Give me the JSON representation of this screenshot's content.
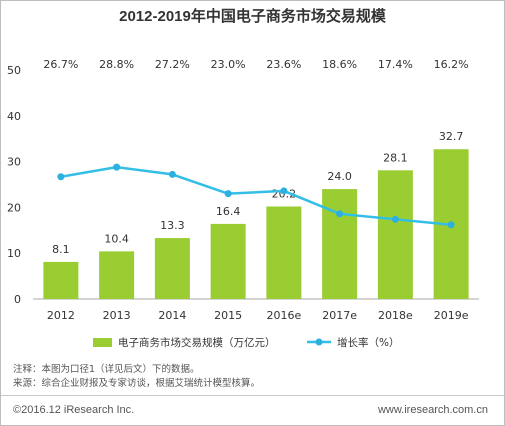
{
  "chart_data": {
    "type": "bar",
    "title": "2012-2019年中国电子商务市场交易规模",
    "categories": [
      "2012",
      "2013",
      "2014",
      "2015",
      "2016e",
      "2017e",
      "2018e",
      "2019e"
    ],
    "series": [
      {
        "name": "电子商务市场交易规模（万亿元）",
        "type": "bar",
        "values": [
          8.1,
          10.4,
          13.3,
          16.4,
          20.2,
          24.0,
          28.1,
          32.7
        ],
        "labels": [
          "8.1",
          "10.4",
          "13.3",
          "16.4",
          "20.2",
          "24.0",
          "28.1",
          "32.7"
        ]
      },
      {
        "name": "增长率（%）",
        "type": "line",
        "values": [
          26.7,
          28.8,
          27.2,
          23.0,
          23.6,
          18.6,
          17.4,
          16.2
        ],
        "labels": [
          "26.7%",
          "28.8%",
          "27.2%",
          "23.0%",
          "23.6%",
          "18.6%",
          "17.4%",
          "16.2%"
        ]
      }
    ],
    "ylim": [
      0,
      50
    ],
    "yticks": [
      "0",
      "10",
      "20",
      "30",
      "40",
      "50"
    ],
    "grid": false,
    "legend_position": "bottom",
    "colors": {
      "bar": "#9ACD32",
      "line": "#33BEE6",
      "marker": "#2BB0E0"
    }
  },
  "notes": {
    "line1": "注释：本图为口径1（详见后文）下的数据。",
    "line2": "来源：综合企业财报及专家访谈，根据艾瑞统计模型核算。"
  },
  "footer": {
    "copyright": "©2016.12 iResearch Inc.",
    "website": "www.iresearch.com.cn"
  }
}
